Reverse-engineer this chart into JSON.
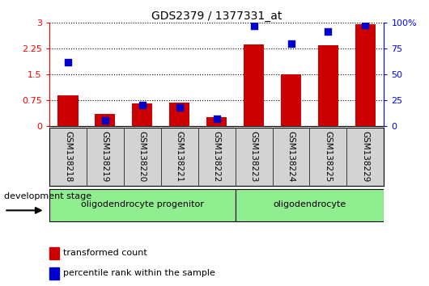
{
  "title": "GDS2379 / 1377331_at",
  "samples": [
    "GSM138218",
    "GSM138219",
    "GSM138220",
    "GSM138221",
    "GSM138222",
    "GSM138223",
    "GSM138224",
    "GSM138225",
    "GSM138229"
  ],
  "transformed_count": [
    0.9,
    0.35,
    0.65,
    0.68,
    0.25,
    2.38,
    1.5,
    2.35,
    2.95
  ],
  "percentile_rank": [
    62,
    5,
    20,
    18,
    7,
    97,
    80,
    92,
    98
  ],
  "ylim_left": [
    0,
    3
  ],
  "ylim_right": [
    0,
    100
  ],
  "yticks_left": [
    0,
    0.75,
    1.5,
    2.25,
    3
  ],
  "yticks_right": [
    0,
    25,
    50,
    75,
    100
  ],
  "ytick_labels_left": [
    "0",
    "0.75",
    "1.5",
    "2.25",
    "3"
  ],
  "ytick_labels_right": [
    "0",
    "25",
    "50",
    "75",
    "100%"
  ],
  "groups": [
    {
      "label": "oligodendrocyte progenitor",
      "start": 0,
      "end": 5,
      "color": "#90EE90"
    },
    {
      "label": "oligodendrocyte",
      "start": 5,
      "end": 9,
      "color": "#90EE90"
    }
  ],
  "bar_color": "#CC0000",
  "dot_color": "#0000CC",
  "tick_label_area_color": "#d3d3d3",
  "legend_labels": [
    "transformed count",
    "percentile rank within the sample"
  ],
  "development_stage_label": "development stage"
}
